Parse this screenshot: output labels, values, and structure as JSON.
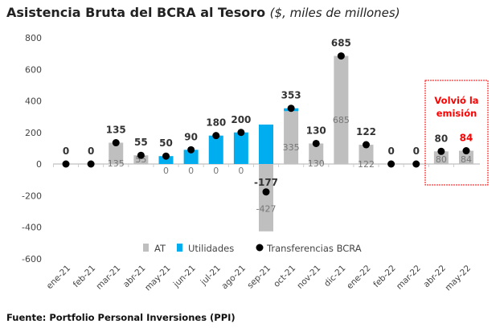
{
  "chart_data": {
    "type": "bar",
    "title": "Asistencia Bruta del BCRA al Tesoro",
    "subtitle": "($, miles de millones)",
    "categories": [
      "ene-21",
      "feb-21",
      "mar-21",
      "abr-21",
      "may-21",
      "jun-21",
      "jul-21",
      "ago-21",
      "sep-21",
      "oct-21",
      "nov-21",
      "dic-21",
      "ene-22",
      "feb-22",
      "mar-22",
      "abr-22",
      "may-22"
    ],
    "series": [
      {
        "name": "AT",
        "kind": "stacked-bar",
        "color": "#bfbfbf",
        "values": [
          0,
          0,
          135,
          55,
          0,
          0,
          0,
          0,
          -427,
          335,
          130,
          685,
          122,
          0,
          0,
          80,
          84
        ],
        "labels": [
          "",
          "",
          "135",
          "55",
          "0",
          "0",
          "0",
          "0",
          "-427",
          "335",
          "130",
          "685",
          "122",
          "",
          "",
          "80",
          "84"
        ]
      },
      {
        "name": "Utilidades",
        "kind": "stacked-bar",
        "color": "#00aeef",
        "values": [
          0,
          0,
          0,
          0,
          50,
          90,
          180,
          200,
          250,
          18,
          0,
          0,
          0,
          0,
          0,
          0,
          0
        ]
      },
      {
        "name": "Transferencias BCRA",
        "kind": "dot",
        "color": "#000000",
        "values": [
          0,
          0,
          135,
          55,
          50,
          90,
          180,
          200,
          -177,
          353,
          130,
          685,
          122,
          0,
          0,
          80,
          84
        ],
        "labels": [
          "0",
          "0",
          "135",
          "55",
          "50",
          "90",
          "180",
          "200",
          "-177",
          "353",
          "130",
          "685",
          "122",
          "0",
          "0",
          "80",
          "84"
        ]
      }
    ],
    "yticks": [
      800,
      600,
      400,
      200,
      0,
      -200,
      -400,
      -600
    ],
    "ylim": [
      -600,
      800
    ],
    "legend": "bottom-center",
    "annotation": {
      "text_lines": [
        "Volvió la",
        "emisión"
      ],
      "color": "#ff0000",
      "highlight_label_index": 16
    }
  },
  "footer": "Fuente: Portfolio Personal Inversiones (PPI)"
}
